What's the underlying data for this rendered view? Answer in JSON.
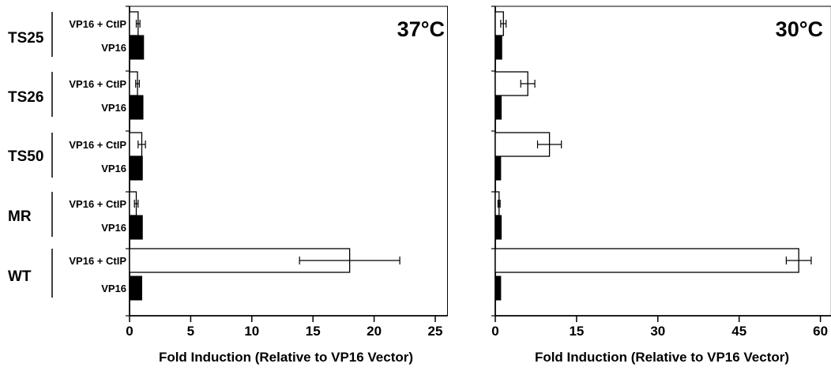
{
  "chart_data": [
    {
      "type": "bar",
      "orientation": "horizontal",
      "title": "37°C",
      "xlabel": "Fold Induction (Relative to VP16 Vector)",
      "xlim": [
        0,
        26
      ],
      "xticks": [
        0,
        5,
        10,
        15,
        20,
        25
      ],
      "groups": [
        "TS25",
        "TS26",
        "TS50",
        "MR",
        "WT"
      ],
      "series": [
        {
          "name": "VP16 + CtIP",
          "fill": "white",
          "values": [
            0.7,
            0.65,
            1.0,
            0.55,
            18.0
          ],
          "errors": [
            0.15,
            0.15,
            0.3,
            0.15,
            4.1
          ]
        },
        {
          "name": "VP16",
          "fill": "black",
          "values": [
            1.15,
            1.1,
            1.05,
            1.05,
            1.0
          ]
        }
      ]
    },
    {
      "type": "bar",
      "orientation": "horizontal",
      "title": "30°C",
      "xlabel": "Fold Induction (Relative to VP16 Vector)",
      "xlim": [
        0,
        62
      ],
      "xticks": [
        0,
        15,
        30,
        45,
        60
      ],
      "groups": [
        "TS25",
        "TS26",
        "TS50",
        "MR",
        "WT"
      ],
      "series": [
        {
          "name": "VP16 + CtIP",
          "fill": "white",
          "values": [
            1.5,
            6.0,
            10.0,
            0.7,
            56.0
          ],
          "errors": [
            0.5,
            1.3,
            2.2,
            0.2,
            2.3
          ]
        },
        {
          "name": "VP16",
          "fill": "black",
          "values": [
            1.2,
            1.1,
            1.0,
            1.1,
            1.0
          ]
        }
      ]
    }
  ]
}
